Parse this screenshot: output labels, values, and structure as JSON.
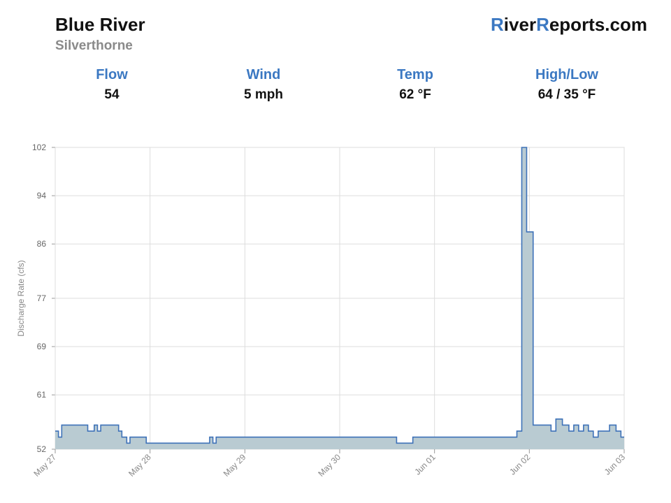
{
  "header": {
    "river_name": "Blue River",
    "location": "Silverthorne",
    "brand": {
      "r1": "R",
      "p1": "iver",
      "r2": "R",
      "p2": "eports.com"
    }
  },
  "stats": [
    {
      "label": "Flow",
      "value": "54"
    },
    {
      "label": "Wind",
      "value": "5 mph"
    },
    {
      "label": "Temp",
      "value": "62 °F"
    },
    {
      "label": "High/Low",
      "value": "64 / 35 °F"
    }
  ],
  "colors": {
    "accent": "#3b78c2",
    "line": "#3e72b8",
    "fill": "#b9cbd2",
    "grid": "#dddddd"
  },
  "chart_data": {
    "type": "area",
    "ylabel": "Discharge Rate (cfs)",
    "ylim": [
      52,
      102
    ],
    "yticks": [
      52,
      61,
      69,
      77,
      86,
      94,
      102
    ],
    "xlim_days": [
      0,
      7
    ],
    "xticks": [
      "May 27",
      "May 28",
      "May 29",
      "May 30",
      "Jun 01",
      "Jun 02",
      "Jun 03"
    ],
    "grid": true,
    "series": [
      {
        "x": [
          0,
          0.04,
          0.08,
          0.36,
          0.4,
          0.48,
          0.52,
          0.56,
          0.74,
          0.78,
          0.82,
          0.88,
          0.92,
          0.98,
          1.04,
          1.08,
          1.12,
          1.9,
          1.94,
          1.98,
          2.84,
          2.88,
          4.18,
          4.2,
          4.4,
          4.44,
          4.5,
          4.54,
          4.58,
          4.64,
          4.68,
          4.72,
          4.76,
          4.8,
          4.84,
          4.88,
          4.92,
          4.96,
          5.0,
          5.04,
          5.08,
          5.12,
          5.16,
          5.2,
          5.24,
          5.28,
          5.34,
          5.4,
          5.46,
          5.5,
          5.56,
          5.62,
          5.68,
          5.74,
          5.8,
          5.88,
          5.94,
          6.1,
          6.16,
          6.24,
          6.32,
          6.38,
          6.44,
          6.5,
          6.56,
          6.62,
          6.68,
          6.82,
          6.86,
          6.9,
          6.96,
          7.0
        ],
        "y": [
          55,
          54,
          56,
          56,
          55,
          56,
          55,
          56,
          56,
          55,
          54,
          53,
          54,
          54,
          54,
          54,
          53,
          54,
          53,
          54,
          54,
          54,
          54,
          53,
          54,
          54,
          54,
          54,
          54,
          54,
          54,
          54,
          54,
          54,
          54,
          54,
          54,
          54,
          54,
          54,
          54,
          54,
          54,
          54,
          54,
          54,
          54,
          54,
          54,
          54,
          54,
          54,
          55,
          102,
          88,
          56,
          56,
          55,
          57,
          56,
          55,
          56,
          55,
          56,
          55,
          54,
          55,
          56,
          56,
          55,
          54,
          54
        ]
      }
    ]
  }
}
